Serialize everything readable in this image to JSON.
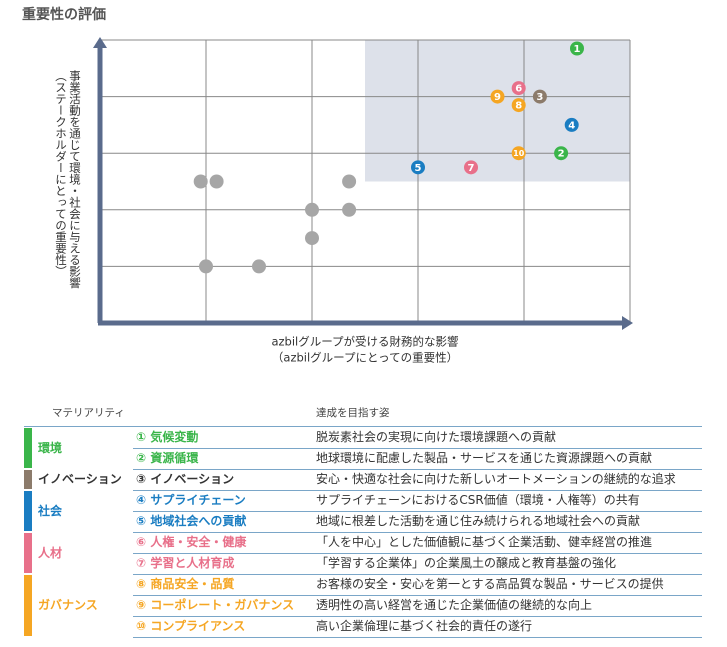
{
  "chart_data": {
    "type": "scatter",
    "title": "重要性の評価",
    "xlabel": [
      "azbilグループが受ける財務的な影響",
      "（azbilグループにとっての重要性）"
    ],
    "ylabel": [
      "事業活動を通じて環境・社会に与える影響",
      "（ステークホルダーにとっての重要性）"
    ],
    "xlim": [
      0,
      5
    ],
    "ylim": [
      0,
      5
    ],
    "xgrid": [
      1,
      2,
      3,
      4
    ],
    "ygrid": [
      1,
      2,
      3,
      4
    ],
    "highlight": {
      "xlim": [
        2.5,
        5
      ],
      "ylim": [
        2.5,
        5
      ],
      "color": "#dde1ea"
    },
    "points": [
      {
        "label": "1",
        "x": 4.5,
        "y": 4.85,
        "color": "#3ab54a"
      },
      {
        "label": "2",
        "x": 4.35,
        "y": 3,
        "color": "#3ab54a"
      },
      {
        "label": "3",
        "x": 4.15,
        "y": 4,
        "color": "#8c7b6b"
      },
      {
        "label": "4",
        "x": 4.45,
        "y": 3.5,
        "color": "#1a7dc2"
      },
      {
        "label": "5",
        "x": 3,
        "y": 2.75,
        "color": "#1a7dc2"
      },
      {
        "label": "6",
        "x": 3.95,
        "y": 4.15,
        "color": "#e8708a"
      },
      {
        "label": "7",
        "x": 3.5,
        "y": 2.75,
        "color": "#e8708a"
      },
      {
        "label": "8",
        "x": 3.95,
        "y": 3.85,
        "color": "#f5a623"
      },
      {
        "label": "9",
        "x": 3.75,
        "y": 4,
        "color": "#f5a623"
      },
      {
        "label": "10",
        "x": 3.95,
        "y": 3,
        "color": "#f5a623"
      }
    ],
    "other_points": {
      "color": "#a6a6a6",
      "x": [
        0.95,
        1.1,
        2.35,
        2,
        2.35,
        2,
        1,
        1.5
      ],
      "y": [
        2.5,
        2.5,
        2.5,
        2,
        2,
        1.5,
        1,
        1
      ]
    }
  },
  "table": {
    "headers": [
      "マテリアリティ",
      "達成を目指す姿"
    ],
    "groups": [
      {
        "name": "環境",
        "color": "#3ab54a",
        "text_color": "#3ab54a",
        "items": [
          {
            "label": "① 気候変動",
            "goal": "脱炭素社会の実現に向けた環境課題への貢献"
          },
          {
            "label": "② 資源循環",
            "goal": "地球環境に配慮した製品・サービスを通じた資源課題への貢献"
          }
        ]
      },
      {
        "name": "イノベーション",
        "color": "#8c7b6b",
        "text_color": "#333333",
        "items": [
          {
            "label": "③ イノベーション",
            "goal": "安心・快適な社会に向けた新しいオートメーションの継続的な追求"
          }
        ]
      },
      {
        "name": "社会",
        "color": "#1a7dc2",
        "text_color": "#1a7dc2",
        "items": [
          {
            "label": "④ サプライチェーン",
            "goal": "サプライチェーンにおけるCSR価値（環境・人権等）の共有"
          },
          {
            "label": "⑤ 地域社会への貢献",
            "goal": "地域に根差した活動を通じ住み続けられる地域社会への貢献"
          }
        ]
      },
      {
        "name": "人材",
        "color": "#e8708a",
        "text_color": "#e8708a",
        "items": [
          {
            "label": "⑥ 人権・安全・健康",
            "goal": "「人を中心」とした価値観に基づく企業活動、健幸経営の推進"
          },
          {
            "label": "⑦ 学習と人材育成",
            "goal": "「学習する企業体」の企業風土の醸成と教育基盤の強化"
          }
        ]
      },
      {
        "name": "ガバナンス",
        "color": "#f5a623",
        "text_color": "#f5a623",
        "items": [
          {
            "label": "⑧ 商品安全・品質",
            "goal": "お客様の安全・安心を第一とする高品質な製品・サービスの提供"
          },
          {
            "label": "⑨ コーポレート・ガバナンス",
            "goal": "透明性の高い経営を通じた企業価値の継続的な向上"
          },
          {
            "label": "⑩ コンプライアンス",
            "goal": "高い企業倫理に基づく社会的責任の遂行"
          }
        ]
      }
    ]
  }
}
